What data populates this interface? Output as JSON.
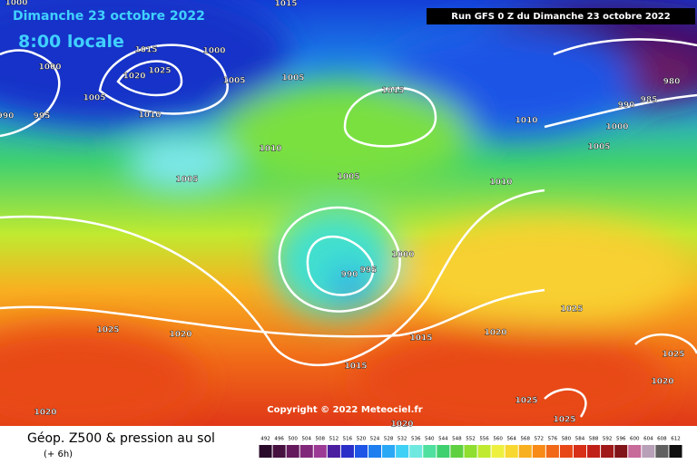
{
  "header": {
    "date": "Dimanche 23 octobre 2022",
    "time": "8:00 locale",
    "run": "Run GFS 0 Z du Dimanche 23 octobre 2022"
  },
  "isobar_labels": [
    "1000",
    "1015",
    "1000",
    "995",
    "990",
    "1005",
    "1015",
    "1025",
    "1020",
    "1000",
    "1005",
    "1005",
    "1010",
    "1005",
    "1015",
    "1010",
    "1005",
    "1010",
    "1010",
    "990",
    "985",
    "980",
    "1000",
    "1005",
    "1000",
    "995",
    "990",
    "1025",
    "1020",
    "1015",
    "1020",
    "1015",
    "1025",
    "1025",
    "1020",
    "1025",
    "1025",
    "1020",
    "1020"
  ],
  "copyright": "Copyright © 2022 Meteociel.fr",
  "footer": {
    "title": "Géop. Z500 & pression au sol",
    "step": "(+ 6h)"
  },
  "colorbar": {
    "labels": [
      492,
      496,
      500,
      504,
      508,
      512,
      516,
      520,
      524,
      528,
      532,
      536,
      540,
      544,
      548,
      552,
      556,
      560,
      564,
      568,
      572,
      576,
      580,
      584,
      588,
      592,
      596,
      600,
      604,
      608,
      612
    ],
    "colors": [
      "#2a0a2a",
      "#46103f",
      "#641a5c",
      "#82287a",
      "#9c3a96",
      "#4b1ea0",
      "#2b2fc8",
      "#1f55e6",
      "#1f7ff0",
      "#2aa8f5",
      "#3fd0f5",
      "#6fe8e0",
      "#4fe0a0",
      "#3fd070",
      "#5fd040",
      "#8fde30",
      "#c0ea30",
      "#eef040",
      "#f8d830",
      "#f8b020",
      "#f88a18",
      "#f06818",
      "#e84818",
      "#d83018",
      "#c02018",
      "#a01818",
      "#801418",
      "#c86a9a",
      "#b8a0b8",
      "#606060",
      "#101010"
    ]
  }
}
